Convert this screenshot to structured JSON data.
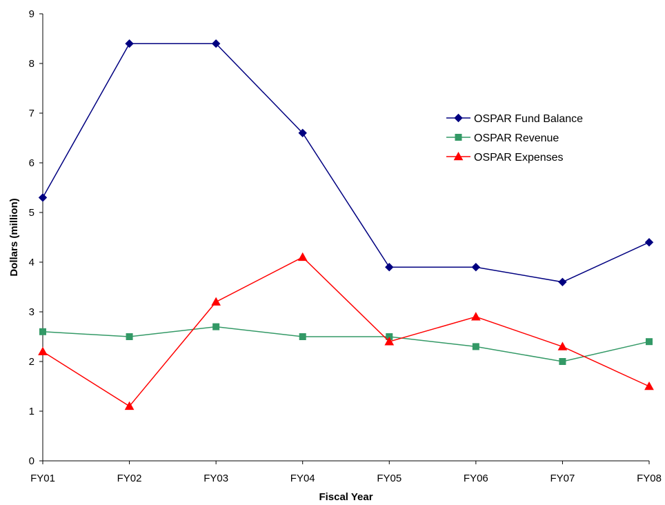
{
  "chart_data": {
    "type": "line",
    "title": "",
    "xlabel": "Fiscal Year",
    "ylabel": "Dollars (million)",
    "categories": [
      "FY01",
      "FY02",
      "FY03",
      "FY04",
      "FY05",
      "FY06",
      "FY07",
      "FY08"
    ],
    "ylim": [
      0,
      9
    ],
    "yticks": [
      "0",
      "1",
      "2",
      "3",
      "4",
      "5",
      "6",
      "7",
      "8",
      "9"
    ],
    "grid": false,
    "legend_position": "top-right",
    "series": [
      {
        "name": "OSPAR Fund Balance",
        "marker": "diamond",
        "color": "#000080",
        "values": [
          5.3,
          8.4,
          8.4,
          6.6,
          3.9,
          3.9,
          3.6,
          4.4
        ]
      },
      {
        "name": "OSPAR Revenue",
        "marker": "square",
        "color": "#339966",
        "values": [
          2.6,
          2.5,
          2.7,
          2.5,
          2.5,
          2.3,
          2.0,
          2.4
        ]
      },
      {
        "name": "OSPAR Expenses",
        "marker": "triangle",
        "color": "#ff0000",
        "values": [
          2.2,
          1.1,
          3.2,
          4.1,
          2.4,
          2.9,
          2.3,
          1.5
        ]
      }
    ]
  }
}
